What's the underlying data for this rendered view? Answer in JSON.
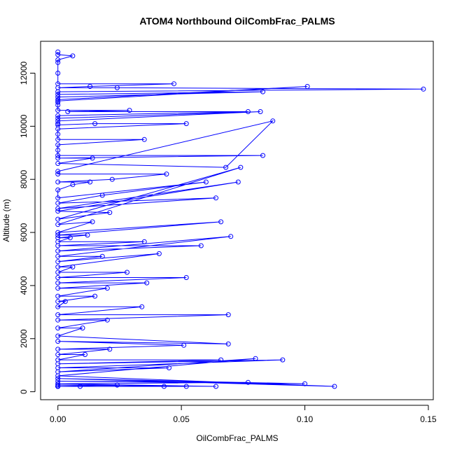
{
  "chart_data": {
    "type": "scatter",
    "title": "ATOM4 Northbound OilCombFrac_PALMS",
    "xlabel": "OilCombFrac_PALMS",
    "ylabel": "Altitude (m)",
    "xlim": [
      -0.007,
      0.152
    ],
    "ylim": [
      -300,
      13200
    ],
    "xticks": [
      "0.00",
      "0.05",
      "0.10",
      "0.15"
    ],
    "xtick_values": [
      0.0,
      0.05,
      0.1,
      0.15
    ],
    "yticks": [
      "0",
      "2000",
      "4000",
      "6000",
      "8000",
      "10000",
      "12000"
    ],
    "ytick_values": [
      0,
      2000,
      4000,
      6000,
      8000,
      10000,
      12000
    ],
    "grid": false,
    "legend": "none",
    "series_color": "#0000ff",
    "marker": "open-circle",
    "connected": true,
    "series": [
      {
        "x": [
          0.0,
          0.0,
          0.006,
          0.0,
          0.0,
          0.0,
          0.0,
          0.047,
          0.013,
          0.0,
          0.024,
          0.148,
          0.0,
          0.0,
          0.083,
          0.0,
          0.0,
          0.101,
          0.0,
          0.0,
          0.0,
          0.0,
          0.029,
          0.004,
          0.077,
          0.0,
          0.0,
          0.082,
          0.0,
          0.0,
          0.0,
          0.015,
          0.052,
          0.0,
          0.0,
          0.0,
          0.035,
          0.0,
          0.0,
          0.0,
          0.083,
          0.0,
          0.014,
          0.0,
          0.068,
          0.087,
          0.0,
          0.0,
          0.044,
          0.022,
          0.0,
          0.013,
          0.006,
          0.0,
          0.0,
          0.06,
          0.018,
          0.0,
          0.064,
          0.0,
          0.073,
          0.0,
          0.021,
          0.0,
          0.074,
          0.0,
          0.014,
          0.0,
          0.066,
          0.0,
          0.012,
          0.0,
          0.005,
          0.0,
          0.035,
          0.0,
          0.058,
          0.0,
          0.07,
          0.0,
          0.018,
          0.0,
          0.041,
          0.0,
          0.006,
          0.0,
          0.028,
          0.0,
          0.052,
          0.0,
          0.036,
          0.0,
          0.02,
          0.0,
          0.015,
          0.0,
          0.003,
          0.0,
          0.034,
          0.0,
          0.069,
          0.0,
          0.02,
          0.0,
          0.01,
          0.0,
          0.069,
          0.0,
          0.051,
          0.0,
          0.021,
          0.0,
          0.011,
          0.0,
          0.066,
          0.0,
          0.091,
          0.0,
          0.045,
          0.0,
          0.08,
          0.0,
          0.112,
          0.0,
          0.1,
          0.0,
          0.077,
          0.0,
          0.064,
          0.0,
          0.024,
          0.0,
          0.052,
          0.0,
          0.043,
          0.0,
          0.009,
          0.0,
          0.0
        ],
        "y": [
          12800,
          12700,
          12650,
          12500,
          12400,
          12000,
          11600,
          11600,
          11500,
          11450,
          11450,
          11400,
          11300,
          11200,
          11300,
          11100,
          11000,
          11500,
          10950,
          10900,
          10800,
          10600,
          10600,
          10550,
          10550,
          10400,
          10300,
          10550,
          10200,
          10100,
          10050,
          10100,
          10100,
          9900,
          9700,
          9500,
          9500,
          9300,
          9100,
          8900,
          8900,
          8800,
          8800,
          8600,
          8450,
          10200,
          8300,
          8200,
          8200,
          8000,
          7900,
          7900,
          7800,
          7600,
          7300,
          7900,
          7400,
          7100,
          7300,
          6900,
          7900,
          6800,
          6750,
          6500,
          8450,
          6300,
          6400,
          6000,
          6400,
          5900,
          5900,
          5800,
          5800,
          5650,
          5650,
          5500,
          5500,
          5300,
          5850,
          5100,
          5100,
          4900,
          5200,
          4700,
          4700,
          4500,
          4500,
          4300,
          4300,
          4100,
          4100,
          3900,
          3900,
          3600,
          3600,
          3400,
          3400,
          3200,
          3200,
          2900,
          2900,
          2700,
          2700,
          2400,
          2400,
          2100,
          1800,
          1900,
          1750,
          1600,
          1600,
          1400,
          1400,
          1200,
          1200,
          1050,
          1200,
          900,
          900,
          750,
          1250,
          600,
          200,
          500,
          300,
          400,
          350,
          300,
          200,
          250,
          250,
          200,
          200,
          200,
          200,
          200,
          200,
          200,
          200
        ]
      }
    ]
  }
}
